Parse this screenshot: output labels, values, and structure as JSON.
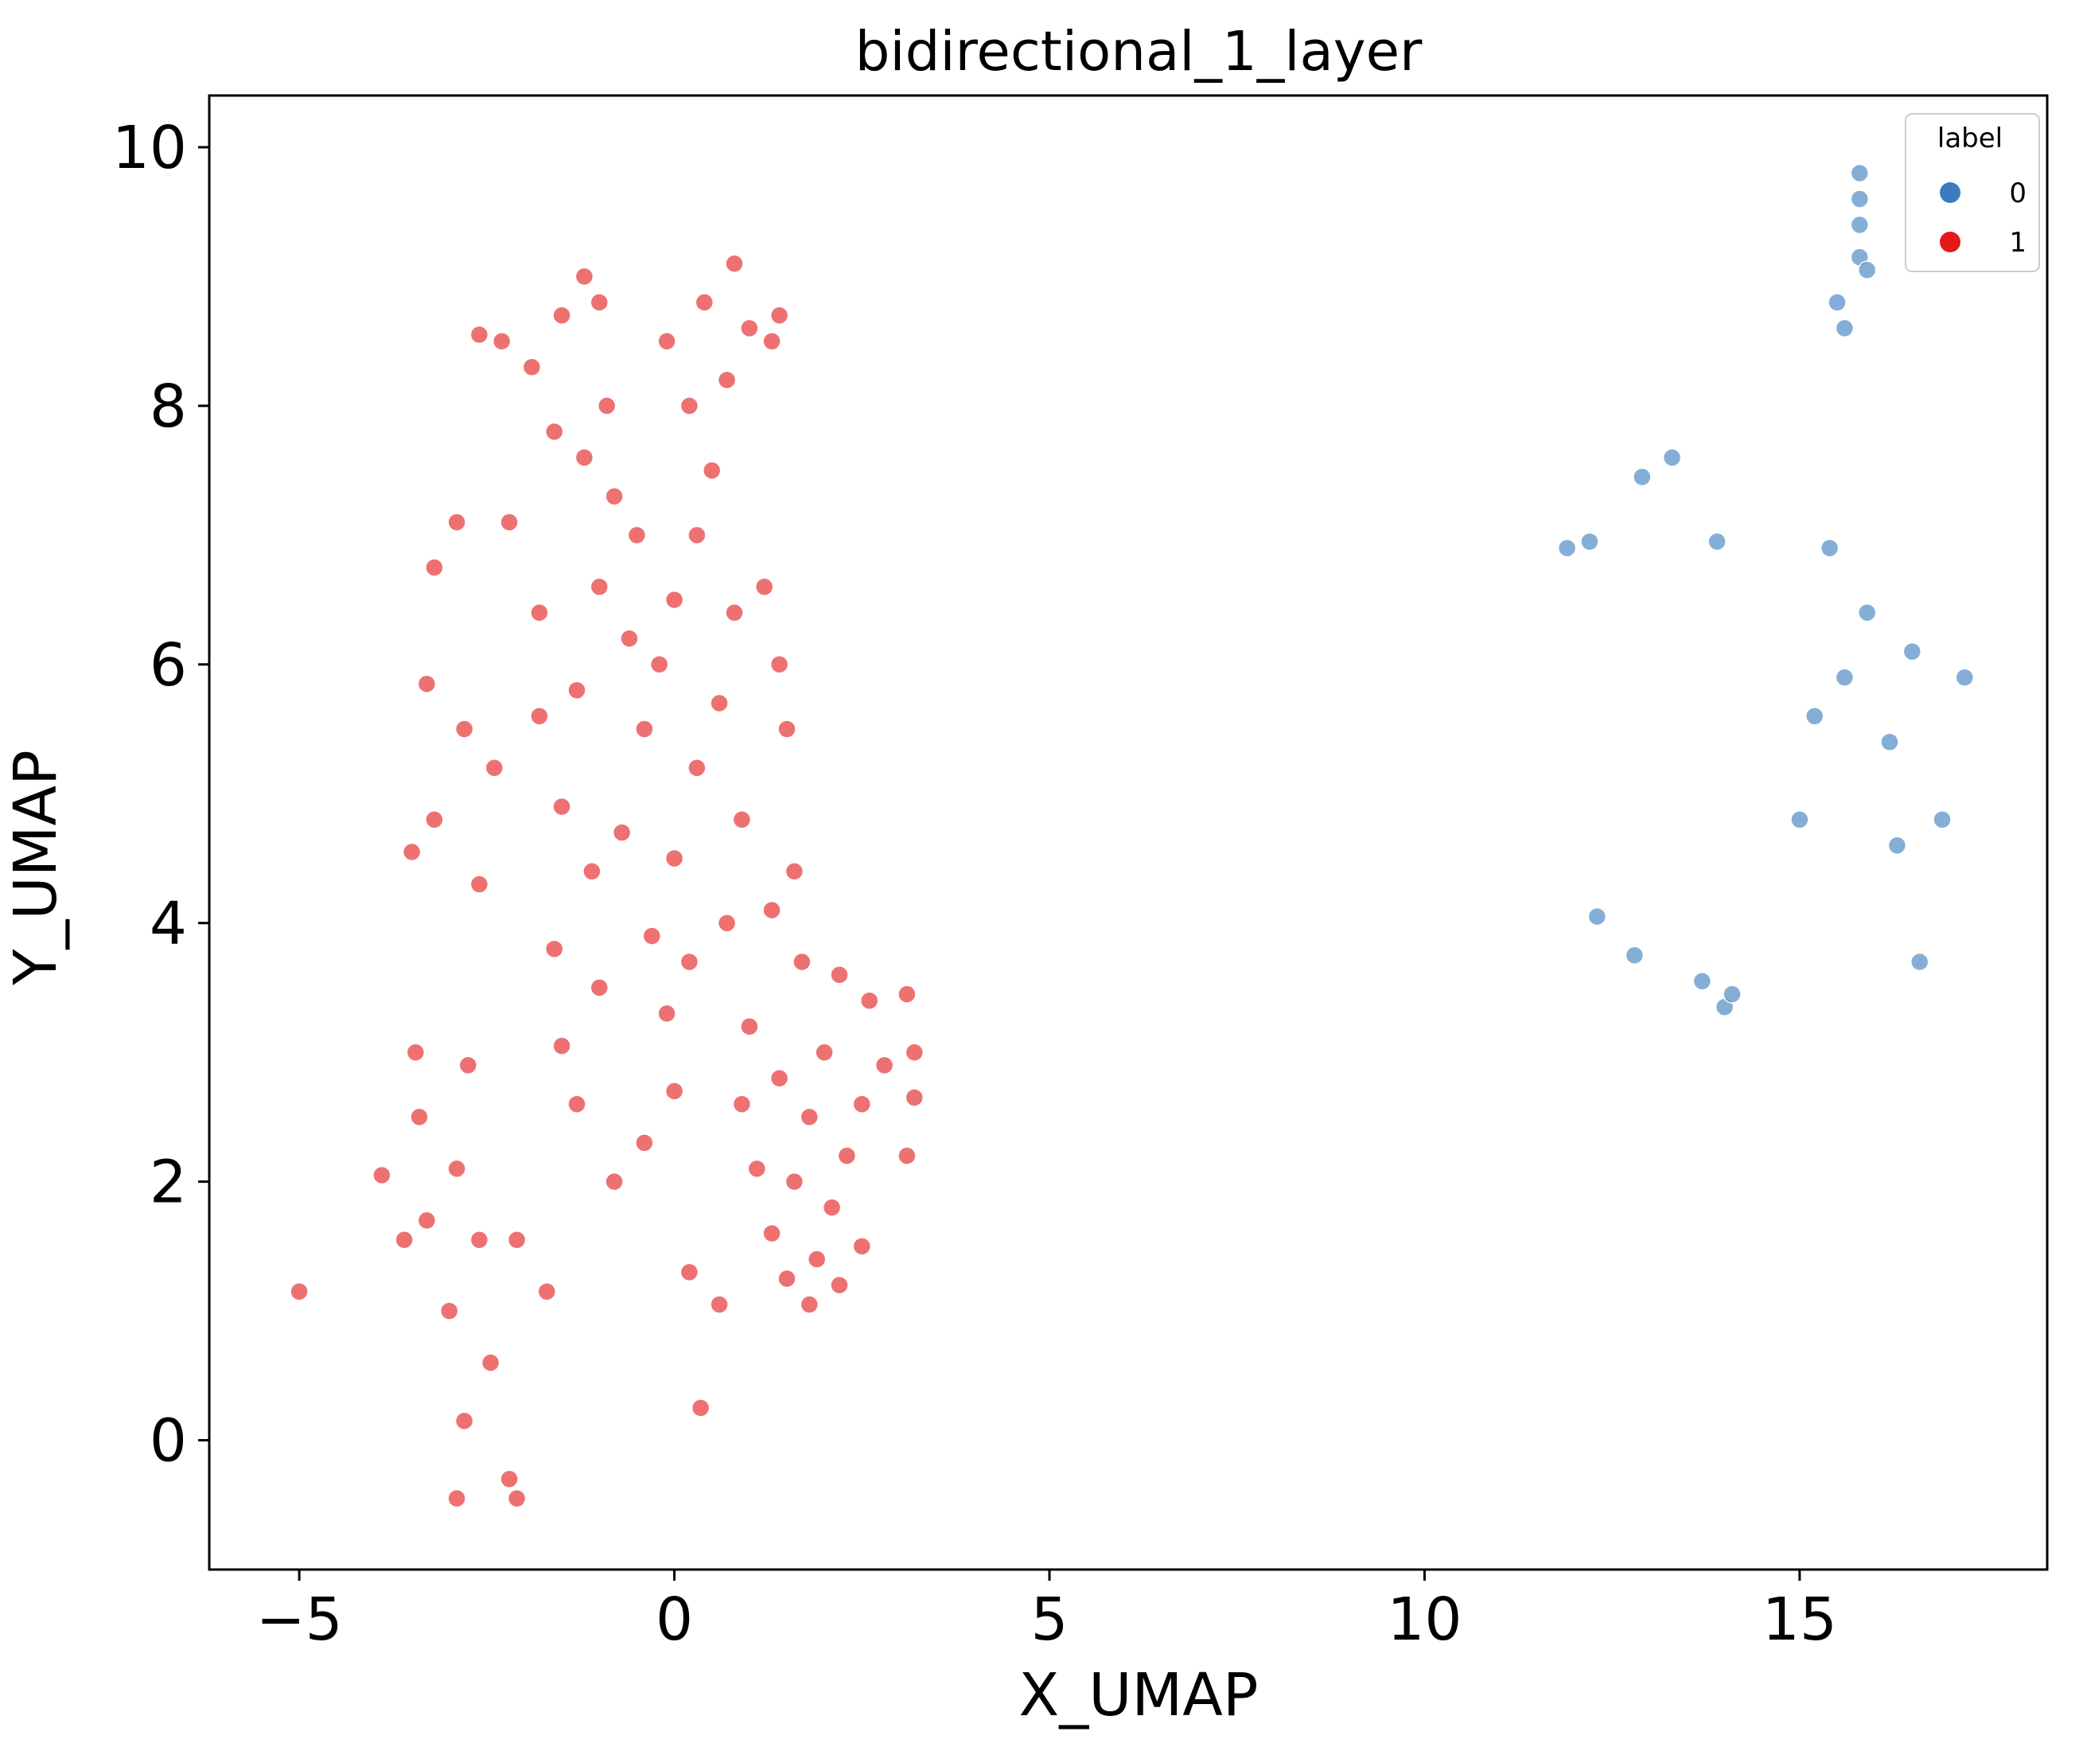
{
  "chart_data": {
    "type": "scatter",
    "title": "bidirectional_1_layer",
    "xlabel": "X_UMAP",
    "ylabel": "Y_UMAP",
    "xlim": [
      -6.2,
      18.3
    ],
    "ylim": [
      -1.0,
      10.4
    ],
    "xticks": [
      -5,
      0,
      5,
      10,
      15
    ],
    "xtick_labels": [
      "−5",
      "0",
      "5",
      "10",
      "15"
    ],
    "yticks": [
      0,
      2,
      4,
      6,
      8,
      10
    ],
    "ytick_labels": [
      "0",
      "2",
      "4",
      "6",
      "8",
      "10"
    ],
    "grid": false,
    "legend": {
      "title": "label",
      "placement": "top-right"
    },
    "series": [
      {
        "name": "0",
        "color": "#3a7dbf",
        "points": [
          [
            15.8,
            9.8
          ],
          [
            15.8,
            9.6
          ],
          [
            15.8,
            9.4
          ],
          [
            15.8,
            9.15
          ],
          [
            15.9,
            9.05
          ],
          [
            15.5,
            8.8
          ],
          [
            15.6,
            8.6
          ],
          [
            14.0,
            3.35
          ],
          [
            14.1,
            3.45
          ],
          [
            13.7,
            3.55
          ],
          [
            12.8,
            3.75
          ],
          [
            16.6,
            3.7
          ],
          [
            11.9,
            6.9
          ],
          [
            12.2,
            6.95
          ],
          [
            13.3,
            7.6
          ],
          [
            12.9,
            7.45
          ],
          [
            13.9,
            6.95
          ],
          [
            12.3,
            4.05
          ],
          [
            16.9,
            4.8
          ],
          [
            17.2,
            5.9
          ],
          [
            15.2,
            5.6
          ],
          [
            15.6,
            5.9
          ],
          [
            15.9,
            6.4
          ],
          [
            16.2,
            5.4
          ],
          [
            15.4,
            6.9
          ],
          [
            16.5,
            6.1
          ],
          [
            15.0,
            4.8
          ],
          [
            16.3,
            4.6
          ]
        ]
      },
      {
        "name": "1",
        "color": "#e31a1c",
        "points": [
          [
            -5.0,
            1.15
          ],
          [
            -2.1,
            -0.45
          ],
          [
            -2.9,
            -0.45
          ],
          [
            -2.2,
            -0.3
          ],
          [
            -2.45,
            0.6
          ],
          [
            -2.8,
            0.15
          ],
          [
            0.35,
            0.25
          ],
          [
            -3.0,
            1.0
          ],
          [
            -3.3,
            1.7
          ],
          [
            -3.6,
            1.55
          ],
          [
            -3.9,
            2.05
          ],
          [
            -2.6,
            1.55
          ],
          [
            -2.1,
            1.55
          ],
          [
            -1.7,
            1.15
          ],
          [
            -3.45,
            3.0
          ],
          [
            -3.4,
            2.5
          ],
          [
            -2.9,
            2.1
          ],
          [
            -2.75,
            2.9
          ],
          [
            -3.5,
            4.55
          ],
          [
            -3.2,
            4.8
          ],
          [
            -2.6,
            4.3
          ],
          [
            -3.3,
            5.85
          ],
          [
            -3.2,
            6.75
          ],
          [
            -2.9,
            7.1
          ],
          [
            -2.2,
            7.1
          ],
          [
            -1.8,
            6.4
          ],
          [
            -2.8,
            5.5
          ],
          [
            -2.4,
            5.2
          ],
          [
            -2.6,
            8.55
          ],
          [
            -2.3,
            8.5
          ],
          [
            -1.9,
            8.3
          ],
          [
            -1.5,
            8.7
          ],
          [
            -1.2,
            9.0
          ],
          [
            -1.0,
            8.8
          ],
          [
            -1.6,
            7.8
          ],
          [
            -1.2,
            7.6
          ],
          [
            -0.8,
            7.3
          ],
          [
            -0.5,
            7.0
          ],
          [
            -1.0,
            6.6
          ],
          [
            -0.6,
            6.2
          ],
          [
            -1.3,
            5.8
          ],
          [
            -1.8,
            5.6
          ],
          [
            -1.5,
            4.9
          ],
          [
            -1.1,
            4.4
          ],
          [
            -0.7,
            4.7
          ],
          [
            -1.6,
            3.8
          ],
          [
            -1.0,
            3.5
          ],
          [
            -1.5,
            3.05
          ],
          [
            -1.3,
            2.6
          ],
          [
            -0.8,
            2.0
          ],
          [
            -0.4,
            2.3
          ],
          [
            0.0,
            2.7
          ],
          [
            0.2,
            1.3
          ],
          [
            0.6,
            1.05
          ],
          [
            -0.1,
            3.3
          ],
          [
            -0.3,
            3.9
          ],
          [
            0.0,
            4.5
          ],
          [
            0.3,
            5.2
          ],
          [
            0.6,
            5.7
          ],
          [
            -0.2,
            6.0
          ],
          [
            0.0,
            6.5
          ],
          [
            0.3,
            7.0
          ],
          [
            0.5,
            7.5
          ],
          [
            0.2,
            8.0
          ],
          [
            -0.1,
            8.5
          ],
          [
            0.4,
            8.8
          ],
          [
            0.8,
            9.1
          ],
          [
            1.0,
            8.6
          ],
          [
            1.4,
            8.7
          ],
          [
            1.3,
            8.5
          ],
          [
            0.7,
            8.2
          ],
          [
            1.2,
            6.6
          ],
          [
            1.4,
            6.0
          ],
          [
            1.5,
            5.5
          ],
          [
            1.6,
            4.4
          ],
          [
            1.7,
            3.7
          ],
          [
            2.2,
            3.6
          ],
          [
            2.6,
            3.4
          ],
          [
            3.1,
            3.45
          ],
          [
            3.2,
            3.0
          ],
          [
            3.1,
            2.2
          ],
          [
            3.2,
            2.65
          ],
          [
            2.8,
            2.9
          ],
          [
            2.5,
            2.6
          ],
          [
            2.3,
            2.2
          ],
          [
            2.1,
            1.8
          ],
          [
            1.9,
            1.4
          ],
          [
            1.8,
            1.05
          ],
          [
            2.2,
            1.2
          ],
          [
            2.5,
            1.5
          ],
          [
            1.5,
            1.25
          ],
          [
            1.3,
            1.6
          ],
          [
            1.6,
            2.0
          ],
          [
            1.8,
            2.5
          ],
          [
            1.4,
            2.8
          ],
          [
            2.0,
            3.0
          ],
          [
            1.0,
            3.2
          ],
          [
            0.9,
            2.6
          ],
          [
            1.1,
            2.1
          ],
          [
            0.7,
            4.0
          ],
          [
            0.9,
            4.8
          ],
          [
            1.3,
            4.1
          ],
          [
            0.2,
            3.7
          ],
          [
            -0.4,
            5.5
          ],
          [
            0.8,
            6.4
          ],
          [
            -0.9,
            8.0
          ]
        ]
      }
    ]
  }
}
